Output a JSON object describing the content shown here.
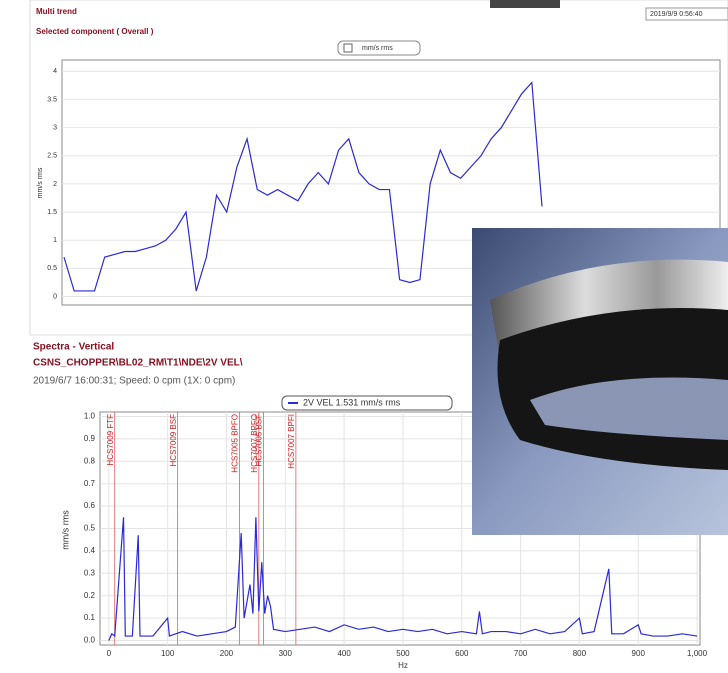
{
  "chart_data": [
    {
      "type": "line",
      "title": "Multi trend",
      "subtitle": "Selected component ( Overall )",
      "timestamp": "2019/9/9 0:56:40",
      "y_label": "mm/s rms",
      "series": [
        {
          "name": "mm/s rms",
          "color": "#2a2ad8",
          "values": [
            0.7,
            0.1,
            0.1,
            0.1,
            0.7,
            0.75,
            0.8,
            0.8,
            0.85,
            0.9,
            1.0,
            1.2,
            1.5,
            0.1,
            0.7,
            1.8,
            1.5,
            2.3,
            2.8,
            1.9,
            1.8,
            1.9,
            1.8,
            1.7,
            2.0,
            2.2,
            2.0,
            2.6,
            2.8,
            2.2,
            2.0,
            1.9,
            1.9,
            0.3,
            0.25,
            0.3,
            2.0,
            2.6,
            2.2,
            2.1,
            2.3,
            2.5,
            2.8,
            3.0,
            3.3,
            3.6,
            3.8,
            1.6
          ]
        }
      ],
      "ylim": [
        -0.15,
        4.2
      ],
      "yticks": [
        0,
        0.5,
        1,
        1.5,
        2,
        2.5,
        3,
        3.5,
        4
      ],
      "grid": true
    },
    {
      "type": "line",
      "title": "Spectra - Vertical",
      "subtitle": "CSNS_CHOPPER\\BL02_RM\\T1\\NDE\\2V VEL\\",
      "info": "2019/6/7 16:00:31; Speed: 0 cpm (1X: 0 cpm)",
      "x_label": "Hz",
      "y_label": "mm/s rms",
      "x": [
        0,
        5,
        10,
        25,
        28,
        40,
        50,
        53,
        75,
        100,
        103,
        125,
        150,
        175,
        200,
        215,
        225,
        230,
        240,
        245,
        250,
        255,
        260,
        265,
        270,
        275,
        280,
        300,
        325,
        350,
        375,
        400,
        425,
        450,
        475,
        500,
        525,
        550,
        575,
        600,
        625,
        630,
        635,
        650,
        675,
        700,
        725,
        750,
        775,
        800,
        805,
        825,
        850,
        855,
        875,
        900,
        905,
        925,
        950,
        975,
        1000
      ],
      "series": [
        {
          "name": "2V VEL 1.531 mm/s rms",
          "color": "#2a2ad8",
          "values": [
            0.0,
            0.03,
            0.02,
            0.55,
            0.02,
            0.02,
            0.47,
            0.02,
            0.02,
            0.1,
            0.02,
            0.04,
            0.02,
            0.03,
            0.04,
            0.06,
            0.48,
            0.1,
            0.25,
            0.12,
            0.55,
            0.13,
            0.35,
            0.12,
            0.2,
            0.15,
            0.05,
            0.04,
            0.05,
            0.06,
            0.04,
            0.07,
            0.05,
            0.06,
            0.04,
            0.05,
            0.04,
            0.05,
            0.03,
            0.04,
            0.03,
            0.13,
            0.03,
            0.04,
            0.04,
            0.03,
            0.05,
            0.03,
            0.04,
            0.1,
            0.03,
            0.04,
            0.32,
            0.03,
            0.03,
            0.07,
            0.03,
            0.02,
            0.02,
            0.03,
            0.02
          ]
        }
      ],
      "markers": [
        {
          "label": "HCS7009 FTF",
          "x": 10
        },
        {
          "label": "HCS7009 BSF",
          "x": 117
        },
        {
          "label": "HCS7005 BPFO",
          "x": 222
        },
        {
          "label": "HCS7007 BPFO",
          "x": 255
        },
        {
          "label": "HCS7005 BSF",
          "x": 263
        },
        {
          "label": "HCS7007 BPFI",
          "x": 318
        }
      ],
      "xlim": [
        -15,
        1005
      ],
      "ylim": [
        -0.02,
        1.02
      ],
      "xticks": [
        0,
        100,
        200,
        300,
        400,
        500,
        600,
        700,
        800,
        900,
        {
          "value": 1000,
          "label": "1,000"
        }
      ],
      "yticks": [
        {
          "value": 0,
          "label": "0.0"
        },
        0.1,
        0.2,
        0.3,
        0.4,
        0.5,
        0.6,
        0.7,
        0.8,
        0.9,
        {
          "value": 1,
          "label": "1.0"
        }
      ],
      "grid": true
    }
  ]
}
